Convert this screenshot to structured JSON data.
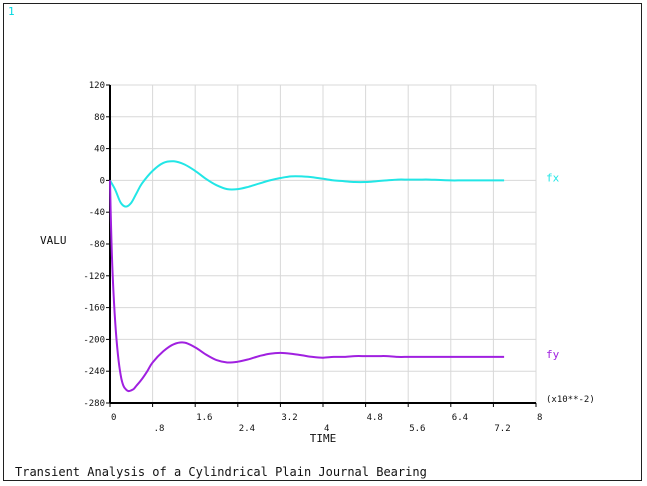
{
  "window_number": "1",
  "caption": "Transient Analysis of a Cylindrical Plain Journal Bearing",
  "chart_data": {
    "type": "line",
    "title": "",
    "xlabel": "TIME",
    "ylabel": "VALU",
    "x_multiplier_label": "(x10**-2)",
    "xlim": [
      0,
      8
    ],
    "ylim": [
      -280,
      120
    ],
    "x_ticks": [
      {
        "v": 0,
        "label": "0",
        "row": 0
      },
      {
        "v": 0.8,
        "label": ".8",
        "row": 1
      },
      {
        "v": 1.6,
        "label": "1.6",
        "row": 0
      },
      {
        "v": 2.4,
        "label": "2.4",
        "row": 1
      },
      {
        "v": 3.2,
        "label": "3.2",
        "row": 0
      },
      {
        "v": 4.0,
        "label": "4",
        "row": 1
      },
      {
        "v": 4.8,
        "label": "4.8",
        "row": 0
      },
      {
        "v": 5.6,
        "label": "5.6",
        "row": 1
      },
      {
        "v": 6.4,
        "label": "6.4",
        "row": 0
      },
      {
        "v": 7.2,
        "label": "7.2",
        "row": 1
      },
      {
        "v": 8.0,
        "label": "8",
        "row": 0
      }
    ],
    "y_ticks": [
      120,
      80,
      40,
      0,
      -40,
      -80,
      -120,
      -160,
      -200,
      -240,
      -280
    ],
    "grid": true,
    "colors": {
      "fx": "#22e6e6",
      "fy": "#a020e0",
      "grid": "#d8d8d8",
      "axis": "#000000"
    },
    "series": [
      {
        "name": "fx",
        "color": "#22e6e6",
        "x": [
          0,
          0.1,
          0.2,
          0.3,
          0.4,
          0.5,
          0.6,
          0.8,
          1.0,
          1.2,
          1.4,
          1.6,
          1.8,
          2.0,
          2.2,
          2.4,
          2.6,
          2.8,
          3.0,
          3.2,
          3.4,
          3.6,
          3.8,
          4.0,
          4.2,
          4.4,
          4.6,
          4.8,
          5.0,
          5.2,
          5.4,
          5.6,
          5.8,
          6.0,
          6.2,
          6.4,
          6.6,
          6.8,
          7.0,
          7.2,
          7.4
        ],
        "y": [
          0,
          -12,
          -28,
          -33,
          -28,
          -16,
          -4,
          12,
          22,
          24,
          20,
          12,
          2,
          -6,
          -11,
          -11,
          -8,
          -4,
          0,
          3,
          5,
          5,
          4,
          2,
          0,
          -1,
          -2,
          -2,
          -1,
          0,
          1,
          1,
          1,
          1,
          0.5,
          0,
          0,
          0,
          0,
          0,
          0
        ]
      },
      {
        "name": "fy",
        "color": "#a020e0",
        "x": [
          0,
          0.02,
          0.05,
          0.1,
          0.15,
          0.2,
          0.25,
          0.3,
          0.35,
          0.4,
          0.45,
          0.5,
          0.6,
          0.7,
          0.8,
          1.0,
          1.2,
          1.4,
          1.6,
          1.8,
          2.0,
          2.2,
          2.4,
          2.6,
          2.8,
          3.0,
          3.2,
          3.4,
          3.6,
          3.8,
          4.0,
          4.2,
          4.4,
          4.6,
          4.8,
          5.0,
          5.2,
          5.4,
          5.6,
          5.8,
          6.0,
          6.2,
          6.4,
          6.6,
          6.8,
          7.0,
          7.2,
          7.4
        ],
        "y": [
          0,
          -60,
          -120,
          -180,
          -220,
          -245,
          -258,
          -263,
          -265,
          -264,
          -262,
          -258,
          -250,
          -240,
          -229,
          -215,
          -206,
          -204,
          -210,
          -219,
          -226,
          -229,
          -228,
          -225,
          -221,
          -218,
          -217,
          -218,
          -220,
          -222,
          -223,
          -222,
          -222,
          -221,
          -221,
          -221,
          -221,
          -222,
          -222,
          -222,
          -222,
          -222,
          -222,
          -222,
          -222,
          -222,
          -222,
          -222
        ]
      }
    ]
  }
}
